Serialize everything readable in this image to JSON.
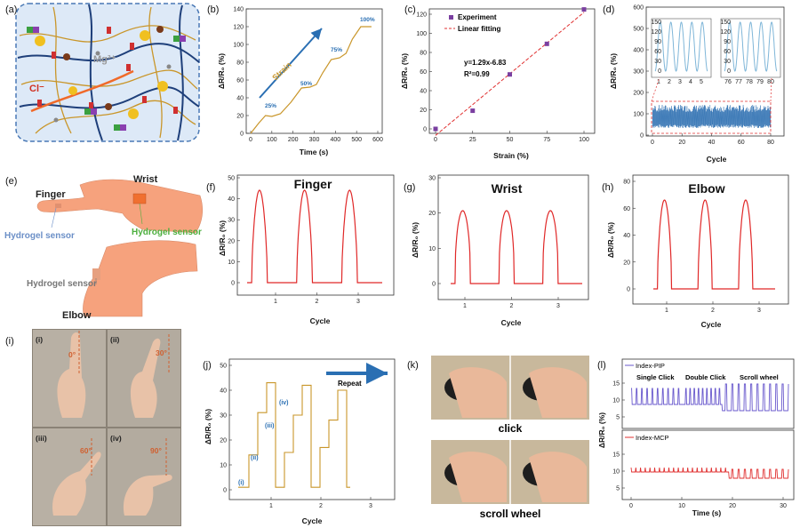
{
  "panel_labels": [
    "(a)",
    "(b)",
    "(c)",
    "(d)",
    "(e)",
    "(f)",
    "(g)",
    "(h)",
    "(i)",
    "(j)",
    "(k)",
    "(l)"
  ],
  "colors": {
    "curve_gold": "#c9962a",
    "fit_red": "#e03030",
    "point_purple": "#7a3fa0",
    "d_blue": "#3a78b6",
    "inset_blue": "#7fb6d8",
    "red_curve": "#e02828",
    "blue_arrow": "#2a6fb3",
    "skin": "#f6a27d",
    "bg_blue": "#dde9f7",
    "pip_purple": "#6a5acd",
    "mcp_red": "#e03030"
  },
  "a": {
    "mg": "Mg²⁺",
    "cl": "Cl⁻"
  },
  "b": {
    "ylabel": "ΔR/R₀ (%)",
    "xlabel": "Time (s)",
    "arrow_label": "Strain",
    "step_labels": [
      "25%",
      "50%",
      "75%",
      "100%"
    ],
    "xticks": [
      "0",
      "100",
      "200",
      "300",
      "400",
      "500",
      "600"
    ],
    "yticks": [
      "0",
      "20",
      "40",
      "60",
      "80",
      "100",
      "120",
      "140"
    ]
  },
  "c": {
    "ylabel": "ΔR/R₀ (%)",
    "xlabel": "Strain (%)",
    "legend": [
      "Experiment",
      "Linear fitting"
    ],
    "equation": "y=1.29x-6.83",
    "r2": "R²=0.99",
    "xticks": [
      "0",
      "25",
      "50",
      "75",
      "100"
    ],
    "yticks": [
      "0",
      "20",
      "40",
      "60",
      "80",
      "100",
      "120"
    ]
  },
  "d": {
    "ylabel": "ΔR/R₀ (%)",
    "xlabel": "Cycle",
    "yticks": [
      "0",
      "100",
      "200",
      "300",
      "400",
      "500",
      "600"
    ],
    "xticks": [
      "0",
      "20",
      "40",
      "60",
      "80"
    ],
    "inset1_x": [
      "1",
      "2",
      "3",
      "4",
      "5"
    ],
    "inset2_x": [
      "76",
      "77",
      "78",
      "79",
      "80"
    ],
    "inset_y": [
      "0",
      "30",
      "60",
      "90",
      "120",
      "150"
    ]
  },
  "e": {
    "finger": "Finger",
    "wrist": "Wrist",
    "elbow": "Elbow",
    "sensor_blue": "Hydrogel sensor",
    "sensor_green": "Hydrogel sensor",
    "sensor_gray": "Hydrogel sensor"
  },
  "f": {
    "title": "Finger",
    "ylabel": "ΔR/R₀ (%)",
    "xlabel": "Cycle",
    "yticks": [
      "0",
      "10",
      "20",
      "30",
      "40",
      "50"
    ],
    "xticks": [
      "1",
      "2",
      "3"
    ]
  },
  "g": {
    "title": "Wrist",
    "ylabel": "ΔR/R₀ (%)",
    "xlabel": "Cycle",
    "yticks": [
      "0",
      "10",
      "20",
      "30"
    ],
    "xticks": [
      "1",
      "2",
      "3"
    ]
  },
  "h": {
    "title": "Elbow",
    "ylabel": "ΔR/R₀ (%)",
    "xlabel": "Cycle",
    "yticks": [
      "0",
      "20",
      "40",
      "60",
      "80"
    ],
    "xticks": [
      "1",
      "2",
      "3"
    ]
  },
  "i": {
    "sub": [
      "(i)",
      "(ii)",
      "(iii)",
      "(iv)"
    ],
    "angles": [
      "0°",
      "30°",
      "60°",
      "90°"
    ]
  },
  "j": {
    "ylabel": "ΔR/R₀ (%)",
    "xlabel": "Cycle",
    "repeat": "Repeat",
    "sub": [
      "(i)",
      "(ii)",
      "(iii)",
      "(iv)"
    ],
    "yticks": [
      "0",
      "10",
      "20",
      "30",
      "40",
      "50"
    ],
    "xticks": [
      "1",
      "2",
      "3"
    ]
  },
  "k": {
    "click": "click",
    "scroll": "scroll wheel"
  },
  "l": {
    "legend_top": "Index-PIP",
    "legend_bottom": "Index-MCP",
    "ann": [
      "Single Click",
      "Double Click",
      "Scroll wheel"
    ],
    "ylabel": "ΔR/R₀ (%)",
    "xlabel": "Time (s)",
    "yticks_top": [
      "5",
      "10",
      "15"
    ],
    "yticks_bottom": [
      "5",
      "10",
      "15"
    ],
    "xticks": [
      "0",
      "10",
      "20",
      "30"
    ]
  }
}
